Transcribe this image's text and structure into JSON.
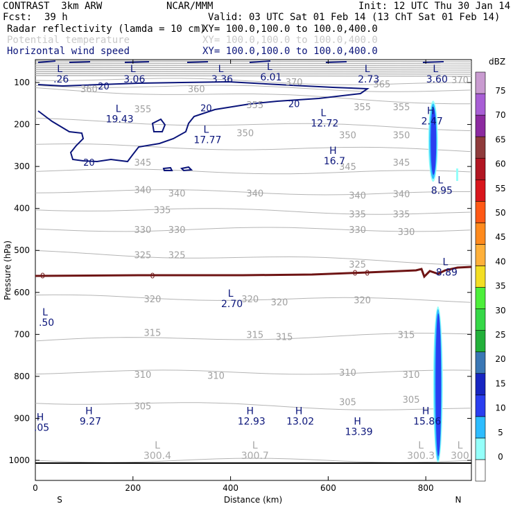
{
  "header": {
    "title": "CONTRAST  3km ARW",
    "center": "NCAR/MMM",
    "init": "Init: 12 UTC Thu 30 Jan 14",
    "fcst_label": "Fcst:",
    "fcst_value": "39 h",
    "valid": "Valid: 03 UTC Sat 01 Feb 14 (13 ChT Sat 01 Feb 14)"
  },
  "fields": [
    {
      "name": "Radar reflectivity (lamda = 10 cm)",
      "xy": "XY= 100.0,100.0 to 100.0,400.0",
      "color": "#000000"
    },
    {
      "name": "Potential temperature",
      "xy": "XY= 100.0,100.0 to 100.0,400.0",
      "color": "#c8c8c8"
    },
    {
      "name": "Horizontal wind speed",
      "xy": "XY= 100.0,100.0 to 100.0,400.0",
      "color": "#0a147a"
    }
  ],
  "chart_data": {
    "type": "cross-section",
    "xlabel": "Distance (km)",
    "ylabel": "Pressure (hPa)",
    "xlim": [
      0,
      890
    ],
    "ylim": [
      1050,
      50
    ],
    "x_ticks": [
      0,
      200,
      400,
      600,
      800
    ],
    "y_ticks": [
      100,
      200,
      300,
      400,
      500,
      600,
      700,
      800,
      900,
      1000
    ],
    "endpoints": {
      "left": "S",
      "right": "N"
    },
    "potential_temperature_contours": [
      {
        "value": 300,
        "p": [
          1000,
          1000
        ]
      },
      {
        "value": 305,
        "p": [
          860,
          880
        ]
      },
      {
        "value": 310,
        "p": [
          790,
          790
        ]
      },
      {
        "value": 315,
        "p": [
          715,
          700
        ]
      },
      {
        "value": 320,
        "p": [
          610,
          620
        ]
      },
      {
        "value": 325,
        "p": [
          505,
          530
        ]
      },
      {
        "value": 330,
        "p": [
          450,
          450
        ]
      },
      {
        "value": 335,
        "p": [
          400,
          412
        ]
      },
      {
        "value": 340,
        "p": [
          358,
          365
        ]
      },
      {
        "value": 345,
        "p": [
          310,
          315
        ]
      },
      {
        "value": 350,
        "p": [
          250,
          262
        ]
      },
      {
        "value": 355,
        "p": [
          190,
          210
        ]
      },
      {
        "value": 360,
        "p": [
          115,
          148
        ]
      },
      {
        "value": 365,
        "p": [
          105,
          120
        ]
      },
      {
        "value": 370,
        "p": [
          90,
          105
        ]
      }
    ],
    "theta_labels": [
      {
        "text": "360",
        "x": 110,
        "p": 115
      },
      {
        "text": "360",
        "x": 330,
        "p": 115
      },
      {
        "text": "370",
        "x": 530,
        "p": 98
      },
      {
        "text": "365",
        "x": 710,
        "p": 103
      },
      {
        "text": "370",
        "x": 870,
        "p": 93
      },
      {
        "text": "355",
        "x": 220,
        "p": 163
      },
      {
        "text": "355",
        "x": 450,
        "p": 153
      },
      {
        "text": "355",
        "x": 670,
        "p": 158
      },
      {
        "text": "355",
        "x": 750,
        "p": 158
      },
      {
        "text": "350",
        "x": 430,
        "p": 220
      },
      {
        "text": "350",
        "x": 640,
        "p": 225
      },
      {
        "text": "350",
        "x": 750,
        "p": 225
      },
      {
        "text": "345",
        "x": 220,
        "p": 290
      },
      {
        "text": "345",
        "x": 640,
        "p": 300
      },
      {
        "text": "345",
        "x": 750,
        "p": 290
      },
      {
        "text": "340",
        "x": 220,
        "p": 355
      },
      {
        "text": "340",
        "x": 290,
        "p": 363
      },
      {
        "text": "340",
        "x": 450,
        "p": 363
      },
      {
        "text": "340",
        "x": 660,
        "p": 368
      },
      {
        "text": "340",
        "x": 750,
        "p": 365
      },
      {
        "text": "335",
        "x": 260,
        "p": 403
      },
      {
        "text": "335",
        "x": 660,
        "p": 413
      },
      {
        "text": "335",
        "x": 750,
        "p": 413
      },
      {
        "text": "330",
        "x": 220,
        "p": 450
      },
      {
        "text": "330",
        "x": 290,
        "p": 450
      },
      {
        "text": "330",
        "x": 660,
        "p": 450
      },
      {
        "text": "330",
        "x": 760,
        "p": 455
      },
      {
        "text": "325",
        "x": 220,
        "p": 510
      },
      {
        "text": "325",
        "x": 290,
        "p": 510
      },
      {
        "text": "325",
        "x": 660,
        "p": 533
      },
      {
        "text": "320",
        "x": 240,
        "p": 615
      },
      {
        "text": "320",
        "x": 440,
        "p": 615
      },
      {
        "text": "320",
        "x": 500,
        "p": 623
      },
      {
        "text": "320",
        "x": 670,
        "p": 618
      },
      {
        "text": "315",
        "x": 240,
        "p": 695
      },
      {
        "text": "315",
        "x": 450,
        "p": 700
      },
      {
        "text": "315",
        "x": 510,
        "p": 705
      },
      {
        "text": "315",
        "x": 760,
        "p": 700
      },
      {
        "text": "310",
        "x": 220,
        "p": 795
      },
      {
        "text": "310",
        "x": 370,
        "p": 798
      },
      {
        "text": "310",
        "x": 640,
        "p": 790
      },
      {
        "text": "310",
        "x": 770,
        "p": 795
      },
      {
        "text": "305",
        "x": 220,
        "p": 870
      },
      {
        "text": "305",
        "x": 640,
        "p": 860
      },
      {
        "text": "305",
        "x": 770,
        "p": 855
      }
    ],
    "wind_20_label": [
      {
        "text": "20",
        "x": 140,
        "p": 108
      },
      {
        "text": "20",
        "x": 350,
        "p": 160
      },
      {
        "text": "20",
        "x": 530,
        "p": 150
      },
      {
        "text": "20",
        "x": 110,
        "p": 290
      }
    ],
    "zero_contour_label": [
      {
        "text": "0",
        "x": 15,
        "p": 560
      },
      {
        "text": "0",
        "x": 240,
        "p": 560
      },
      {
        "text": "0",
        "x": 655,
        "p": 553
      },
      {
        "text": "0",
        "x": 680,
        "p": 553
      }
    ],
    "wind_extrema": [
      {
        "kind": "L",
        "value": ".26",
        "x": 50,
        "p": 75
      },
      {
        "kind": "L",
        "value": "3.06",
        "x": 200,
        "p": 75
      },
      {
        "kind": "L",
        "value": "3.36",
        "x": 380,
        "p": 75
      },
      {
        "kind": "L",
        "value": "6.01",
        "x": 480,
        "p": 70
      },
      {
        "kind": "L",
        "value": "2.73",
        "x": 680,
        "p": 75
      },
      {
        "kind": "L",
        "value": "3.60",
        "x": 820,
        "p": 75
      },
      {
        "kind": "L",
        "value": "19.43",
        "x": 170,
        "p": 170
      },
      {
        "kind": "L",
        "value": "12.72",
        "x": 590,
        "p": 180
      },
      {
        "kind": "L",
        "value": "17.77",
        "x": 350,
        "p": 220
      },
      {
        "kind": "H",
        "value": "16.7",
        "x": 610,
        "p": 270
      },
      {
        "kind": "H",
        "value": "2.47",
        "x": 810,
        "p": 175
      },
      {
        "kind": "L",
        "value": "8.95",
        "x": 830,
        "p": 340
      },
      {
        "kind": "L",
        "value": "8.89",
        "x": 840,
        "p": 535
      },
      {
        "kind": "L",
        "value": "2.70",
        "x": 400,
        "p": 610
      },
      {
        "kind": "L",
        "value": ".50",
        "x": 20,
        "p": 655
      },
      {
        "kind": "H",
        "value": "9.27",
        "x": 110,
        "p": 890
      },
      {
        "kind": "H",
        "value": ".05",
        "x": 10,
        "p": 905
      },
      {
        "kind": "H",
        "value": "12.93",
        "x": 440,
        "p": 890
      },
      {
        "kind": "H",
        "value": "13.02",
        "x": 540,
        "p": 890
      },
      {
        "kind": "H",
        "value": "13.39",
        "x": 660,
        "p": 915
      },
      {
        "kind": "H",
        "value": "15.86",
        "x": 800,
        "p": 890
      }
    ],
    "theta_extrema": [
      {
        "kind": "L",
        "value": "300.4",
        "x": 250,
        "p": 985
      },
      {
        "kind": "L",
        "value": "300.7",
        "x": 450,
        "p": 985
      },
      {
        "kind": "L",
        "value": "300.3",
        "x": 790,
        "p": 985
      },
      {
        "kind": "L",
        "value": "300",
        "x": 870,
        "p": 985
      }
    ],
    "reflectivity_cells": [
      {
        "x": 815,
        "p_top": 150,
        "p_bottom": 330,
        "max_dbz": 15
      },
      {
        "x": 825,
        "p_top": 640,
        "p_bottom": 1000,
        "max_dbz": 15
      }
    ],
    "colorbar": {
      "unit": "dBZ",
      "levels": [
        0,
        5,
        10,
        15,
        20,
        25,
        30,
        35,
        40,
        45,
        50,
        55,
        60,
        65,
        70,
        75
      ],
      "colors": [
        "#ffffff",
        "#94fffa",
        "#2dbcff",
        "#2a3ef0",
        "#1725c2",
        "#3a77b5",
        "#22b03a",
        "#35d847",
        "#4cef3a",
        "#f3de23",
        "#ffb03a",
        "#ff8a1d",
        "#ff5815",
        "#d9161c",
        "#b21622",
        "#8f3b3b",
        "#8c2aa0",
        "#a85ed5",
        "#c99bd0"
      ]
    }
  }
}
